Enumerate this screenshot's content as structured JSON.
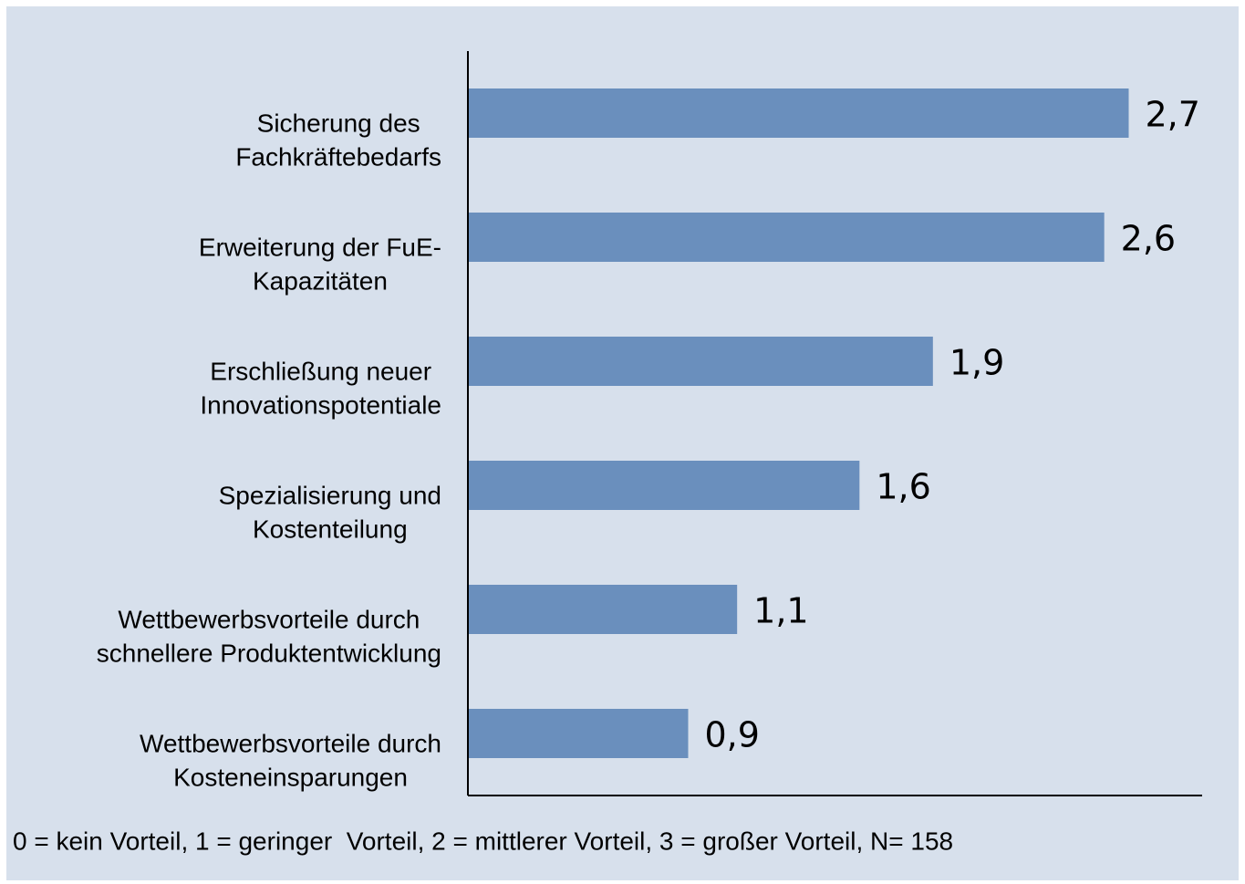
{
  "chart_data": {
    "type": "bar",
    "orientation": "horizontal",
    "categories": [
      [
        "Sicherung des",
        "Fachkräftebedarfs"
      ],
      [
        "Erweiterung der FuE-",
        "Kapazitäten"
      ],
      [
        "Erschließung neuer",
        "Innovationspotentiale"
      ],
      [
        "Spezialisierung und",
        "Kostenteilung"
      ],
      [
        "Wettbewerbsvorteile durch",
        "schnellere Produktentwicklung"
      ],
      [
        "Wettbewerbsvorteile durch",
        "Kosteneinsparungen"
      ]
    ],
    "values": [
      2.7,
      2.6,
      1.9,
      1.6,
      1.1,
      0.9
    ],
    "value_labels": [
      "2,7",
      "2,6",
      "1,9",
      "1,6",
      "1,1",
      "0,9"
    ],
    "color": "#6a8fbd",
    "xlim": [
      0,
      3
    ],
    "note": "0 = kein Vorteil, 1 = geringer  Vorteil, 2 = mittlerer Vorteil, 3 = großer Vorteil, N= 158"
  }
}
